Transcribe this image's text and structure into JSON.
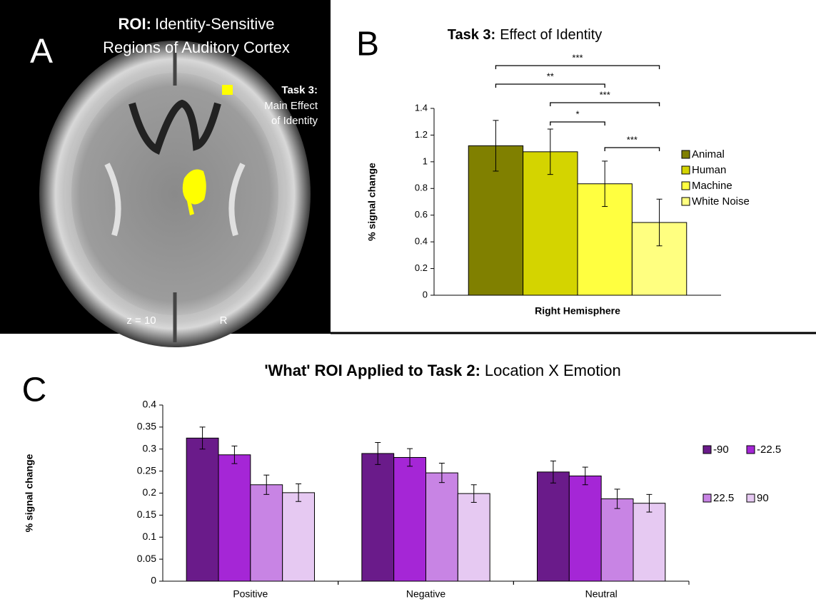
{
  "panel_labels": [
    "A",
    "B",
    "C"
  ],
  "panel_a": {
    "title_bold": "ROI:",
    "title_lines": [
      "Identity-Sensitive",
      "Regions of Auditory Cortex"
    ],
    "legend_bold": "Task 3:",
    "legend_lines": [
      "Main Effect",
      "of Identity"
    ],
    "slice_label": "z = 10",
    "side_label": "R"
  },
  "chart_data": [
    {
      "type": "bar",
      "title_bold": "Task 3:",
      "title": "Effect of Identity",
      "ylabel": "% signal change",
      "categories": [
        "Right Hemisphere"
      ],
      "series": [
        {
          "name": "Animal",
          "color": "#808000",
          "values": [
            1.12
          ],
          "errors": [
            0.19
          ]
        },
        {
          "name": "Human",
          "color": "#d4d400",
          "values": [
            1.075
          ],
          "errors": [
            0.17
          ]
        },
        {
          "name": "Machine",
          "color": "#ffff40",
          "values": [
            0.835
          ],
          "errors": [
            0.17
          ]
        },
        {
          "name": "White Noise",
          "color": "#ffff80",
          "values": [
            0.545
          ],
          "errors": [
            0.175
          ]
        }
      ],
      "ylim": [
        0,
        1.4
      ],
      "yticks": [
        0,
        0.2,
        0.4,
        0.6,
        0.8,
        1,
        1.2,
        1.4
      ],
      "significance": [
        {
          "pair": [
            0,
            3
          ],
          "label": "***"
        },
        {
          "pair": [
            0,
            2
          ],
          "label": "**"
        },
        {
          "pair": [
            1,
            3
          ],
          "label": "***"
        },
        {
          "pair": [
            1,
            2
          ],
          "label": "*"
        },
        {
          "pair": [
            2,
            3
          ],
          "label": "***"
        }
      ]
    },
    {
      "type": "bar",
      "title_bold": "'What' ROI Applied to Task 2:",
      "title": "Location X Emotion",
      "ylabel": "% signal change",
      "categories": [
        "Positive",
        "Negative",
        "Neutral"
      ],
      "series": [
        {
          "name": "-90",
          "color": "#6a1b8a",
          "values": [
            0.325,
            0.29,
            0.248
          ],
          "errors": [
            0.025,
            0.025,
            0.025
          ]
        },
        {
          "name": "-22.5",
          "color": "#a526d6",
          "values": [
            0.287,
            0.281,
            0.239
          ],
          "errors": [
            0.02,
            0.02,
            0.02
          ]
        },
        {
          "name": "22.5",
          "color": "#c884e4",
          "values": [
            0.219,
            0.246,
            0.187
          ],
          "errors": [
            0.022,
            0.022,
            0.022
          ]
        },
        {
          "name": "90",
          "color": "#e6c9f2",
          "values": [
            0.201,
            0.199,
            0.177
          ],
          "errors": [
            0.02,
            0.02,
            0.02
          ]
        }
      ],
      "ylim": [
        0,
        0.4
      ],
      "yticks": [
        0,
        0.05,
        0.1,
        0.15,
        0.2,
        0.25,
        0.3,
        0.35,
        0.4
      ]
    }
  ]
}
